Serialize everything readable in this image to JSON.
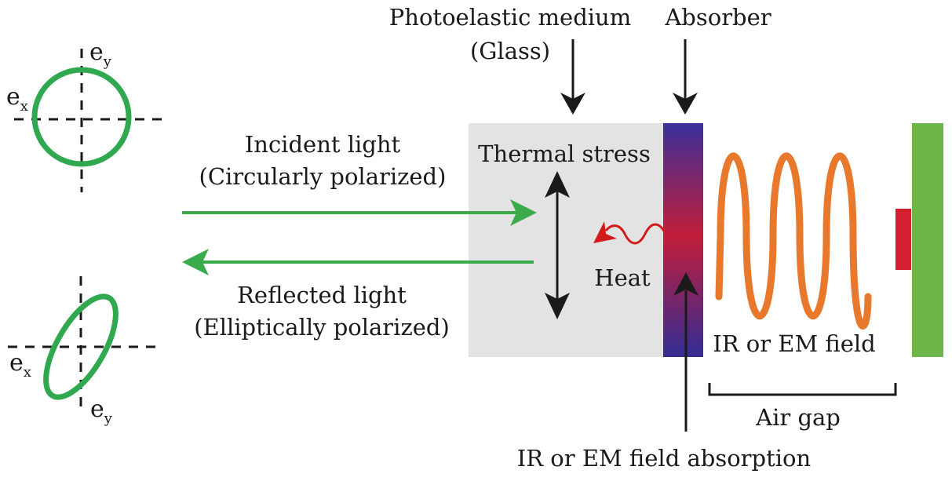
{
  "labels": {
    "photoelastic_line1": "Photoelastic medium",
    "photoelastic_line2": "(Glass)",
    "absorber": "Absorber",
    "incident_line1": "Incident light",
    "incident_line2": "(Circularly polarized)",
    "reflected_line1": "Reflected light",
    "reflected_line2": "(Elliptically polarized)",
    "thermal_stress": "Thermal stress",
    "heat": "Heat",
    "ir_field": "IR or EM field",
    "air_gap": "Air gap",
    "ir_absorption": "IR or EM field absorption"
  },
  "axes": {
    "top": {
      "x_base": "e",
      "x_sub": "x",
      "y_base": "e",
      "y_sub": "y"
    },
    "bottom": {
      "x_base": "e",
      "x_sub": "x",
      "y_base": "e",
      "y_sub": "y"
    }
  },
  "colors": {
    "light_green": "#3aaa4a",
    "polarization_green": "#2fa84f",
    "glass_gray": "#e3e3e3",
    "absorber_top": "#3a2f9a",
    "absorber_mid": "#c21e3a",
    "spring_orange": "#e8792c",
    "heat_red": "#d11a1a",
    "plate_green": "#6cb64a",
    "contact_red": "#d22030",
    "arrow_black": "#1a1a1a"
  }
}
